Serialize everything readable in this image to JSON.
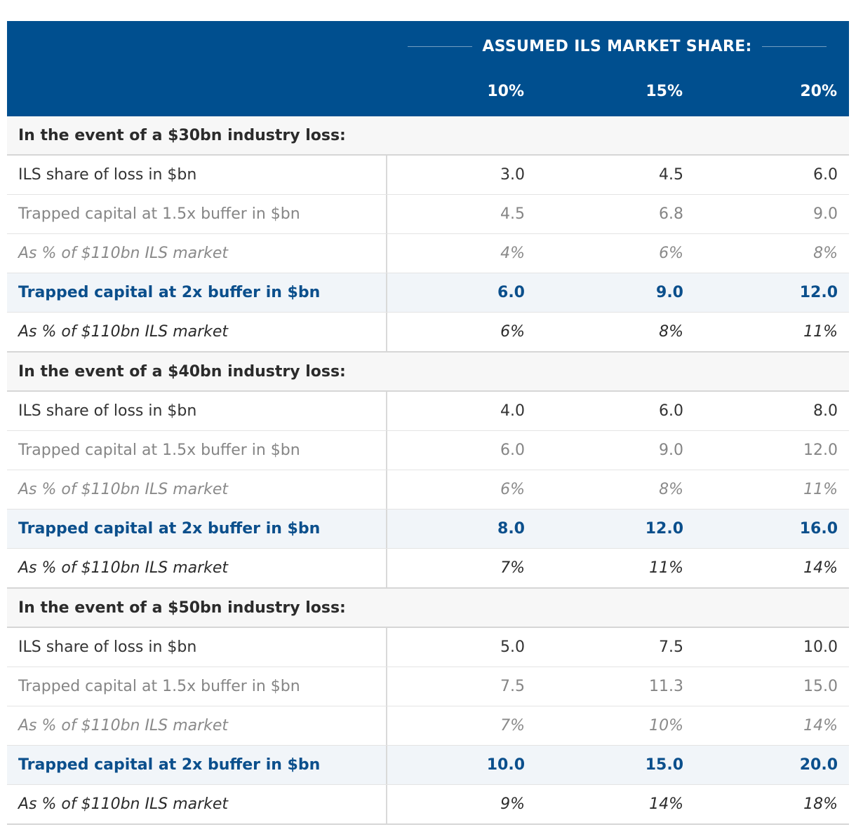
{
  "header": {
    "super_label": "ASSUMED ILS MARKET SHARE:",
    "columns": [
      "10%",
      "15%",
      "20%"
    ]
  },
  "sections": [
    {
      "title": "In the event of a $30bn industry loss:",
      "rows": [
        {
          "label": "ILS share of loss in $bn",
          "values": [
            "3.0",
            "4.5",
            "6.0"
          ]
        },
        {
          "label": "Trapped capital at 1.5x buffer in $bn",
          "values": [
            "4.5",
            "6.8",
            "9.0"
          ]
        },
        {
          "label": "As % of $110bn ILS market",
          "values": [
            "4%",
            "6%",
            "8%"
          ]
        },
        {
          "label": "Trapped capital at 2x buffer in $bn",
          "values": [
            "6.0",
            "9.0",
            "12.0"
          ]
        },
        {
          "label": "As % of $110bn ILS market",
          "values": [
            "6%",
            "8%",
            "11%"
          ]
        }
      ]
    },
    {
      "title": "In the event of a $40bn industry loss:",
      "rows": [
        {
          "label": "ILS share of loss in $bn",
          "values": [
            "4.0",
            "6.0",
            "8.0"
          ]
        },
        {
          "label": "Trapped capital at 1.5x buffer in $bn",
          "values": [
            "6.0",
            "9.0",
            "12.0"
          ]
        },
        {
          "label": "As % of $110bn ILS market",
          "values": [
            "6%",
            "8%",
            "11%"
          ]
        },
        {
          "label": "Trapped capital at 2x buffer in $bn",
          "values": [
            "8.0",
            "12.0",
            "16.0"
          ]
        },
        {
          "label": "As % of $110bn ILS market",
          "values": [
            "7%",
            "11%",
            "14%"
          ]
        }
      ]
    },
    {
      "title": "In the event of a $50bn industry loss:",
      "rows": [
        {
          "label": "ILS share of loss in $bn",
          "values": [
            "5.0",
            "7.5",
            "10.0"
          ]
        },
        {
          "label": "Trapped capital at 1.5x buffer in $bn",
          "values": [
            "7.5",
            "11.3",
            "15.0"
          ]
        },
        {
          "label": "As % of $110bn ILS market",
          "values": [
            "7%",
            "10%",
            "14%"
          ]
        },
        {
          "label": "Trapped capital at 2x buffer in $bn",
          "values": [
            "10.0",
            "15.0",
            "20.0"
          ]
        },
        {
          "label": "As % of $110bn ILS market",
          "values": [
            "9%",
            "14%",
            "18%"
          ]
        }
      ]
    }
  ],
  "colors": {
    "header_bg": "#004f8f",
    "highlight_text": "#0b4f8c",
    "highlight_bg": "#f1f5f9",
    "section_bg": "#f7f7f7"
  }
}
